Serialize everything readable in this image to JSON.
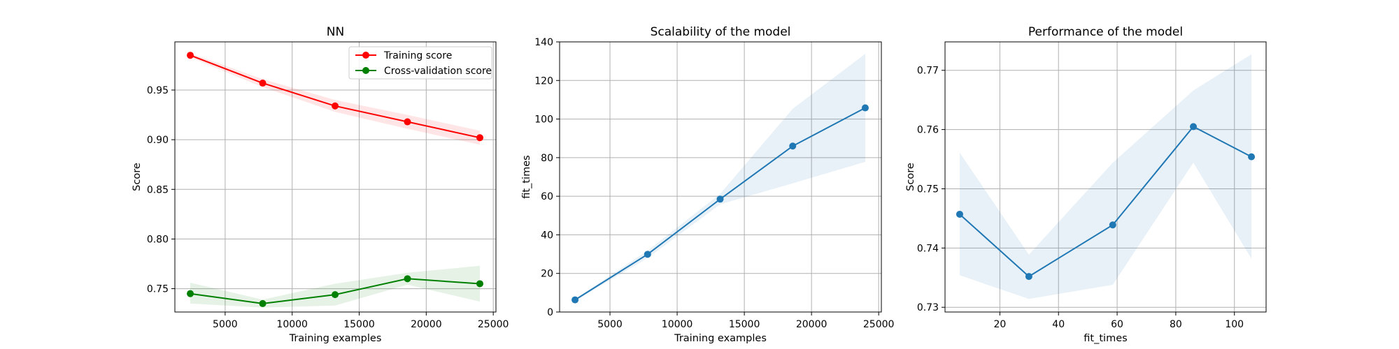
{
  "chart_data": [
    {
      "type": "line",
      "title": "NN",
      "xlabel": "Training examples",
      "ylabel": "Score",
      "xlim": [
        1250,
        25200
      ],
      "ylim": [
        0.7265,
        0.9985
      ],
      "xticks": [
        5000,
        10000,
        15000,
        20000,
        25000
      ],
      "xtick_labels": [
        "5000",
        "10000",
        "15000",
        "20000",
        "25000"
      ],
      "yticks": [
        0.75,
        0.8,
        0.85,
        0.9,
        0.95
      ],
      "ytick_labels": [
        "0.75",
        "0.80",
        "0.85",
        "0.90",
        "0.95"
      ],
      "grid": true,
      "legend": "top-right",
      "x": [
        2400,
        7800,
        13200,
        18600,
        24000
      ],
      "series": [
        {
          "name": "Training score",
          "color": "#ff0000",
          "values": [
            0.985,
            0.957,
            0.934,
            0.918,
            0.902
          ],
          "band_lower": [
            0.983,
            0.953,
            0.928,
            0.911,
            0.895
          ],
          "band_upper": [
            0.987,
            0.961,
            0.94,
            0.925,
            0.909
          ]
        },
        {
          "name": "Cross-validation score",
          "color": "#008000",
          "values": [
            0.745,
            0.735,
            0.744,
            0.76,
            0.755
          ],
          "band_lower": [
            0.735,
            0.731,
            0.733,
            0.754,
            0.737
          ],
          "band_upper": [
            0.756,
            0.739,
            0.755,
            0.766,
            0.773
          ]
        }
      ]
    },
    {
      "type": "line",
      "title": "Scalability of the model",
      "xlabel": "Training examples",
      "ylabel": "fit_times",
      "xlim": [
        1250,
        25200
      ],
      "ylim": [
        0,
        140
      ],
      "xticks": [
        5000,
        10000,
        15000,
        20000,
        25000
      ],
      "xtick_labels": [
        "5000",
        "10000",
        "15000",
        "20000",
        "25000"
      ],
      "yticks": [
        0,
        20,
        40,
        60,
        80,
        100,
        120,
        140
      ],
      "ytick_labels": [
        "0",
        "20",
        "40",
        "60",
        "80",
        "100",
        "120",
        "140"
      ],
      "grid": true,
      "x": [
        2400,
        7800,
        13200,
        18600,
        24000
      ],
      "series": [
        {
          "color": "#1f77b4",
          "values": [
            6.3,
            29.9,
            58.5,
            86.0,
            105.8
          ],
          "band_lower": [
            5.8,
            28.0,
            55.8,
            66.7,
            77.8
          ],
          "band_upper": [
            6.8,
            31.8,
            61.2,
            105.3,
            133.8
          ]
        }
      ]
    },
    {
      "type": "line",
      "title": "Performance of the model",
      "xlabel": "fit_times",
      "ylabel": "Score",
      "xlim": [
        1.3,
        110.8
      ],
      "ylim": [
        0.7292,
        0.7748
      ],
      "xticks": [
        20,
        40,
        60,
        80,
        100
      ],
      "xtick_labels": [
        "20",
        "40",
        "60",
        "80",
        "100"
      ],
      "yticks": [
        0.73,
        0.74,
        0.75,
        0.76,
        0.77
      ],
      "ytick_labels": [
        "0.73",
        "0.74",
        "0.75",
        "0.76",
        "0.77"
      ],
      "grid": true,
      "x": [
        6.3,
        29.9,
        58.5,
        86.0,
        105.8
      ],
      "series": [
        {
          "color": "#1f77b4",
          "values": [
            0.7457,
            0.7352,
            0.7439,
            0.7605,
            0.7554
          ],
          "band_lower": [
            0.7354,
            0.7314,
            0.7338,
            0.7544,
            0.7382
          ],
          "band_upper": [
            0.7561,
            0.7389,
            0.7544,
            0.7666,
            0.7727
          ]
        }
      ]
    }
  ]
}
